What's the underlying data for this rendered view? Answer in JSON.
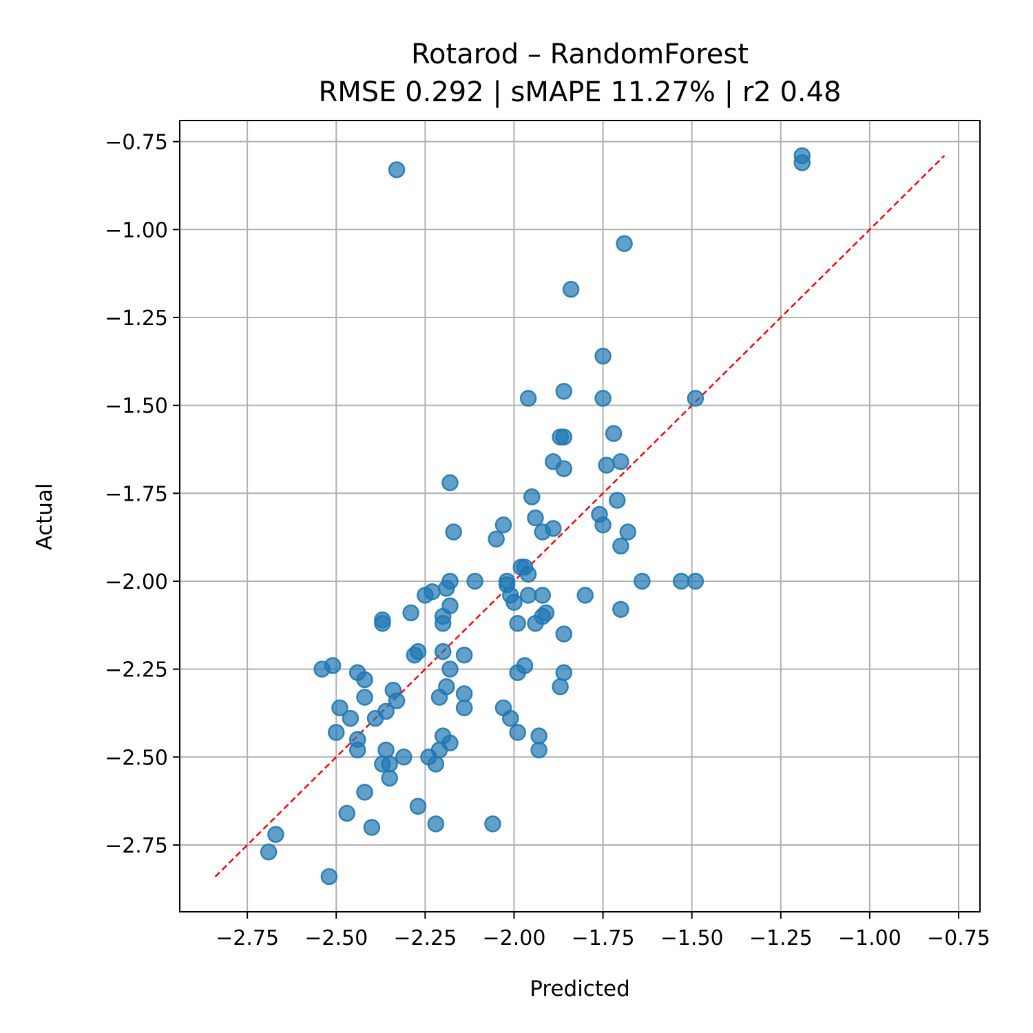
{
  "chart_data": {
    "type": "scatter",
    "title_lines": [
      "Rotarod – RandomForest",
      "RMSE 0.292 | sMAPE 11.27%  | r2 0.48"
    ],
    "xlabel": "Predicted",
    "ylabel": "Actual",
    "xlim": [
      -2.94,
      -0.69
    ],
    "ylim": [
      -2.94,
      -0.69
    ],
    "xticks": [
      -2.75,
      -2.5,
      -2.25,
      -2.0,
      -1.75,
      -1.5,
      -1.25,
      -1.0,
      -0.75
    ],
    "xtick_labels": [
      "−2.75",
      "−2.50",
      "−2.25",
      "−2.00",
      "−1.75",
      "−1.50",
      "−1.25",
      "−1.00",
      "−0.75"
    ],
    "yticks": [
      -0.75,
      -1.0,
      -1.25,
      -1.5,
      -1.75,
      -2.0,
      -2.25,
      -2.5,
      -2.75
    ],
    "ytick_labels": [
      "−0.75",
      "−1.00",
      "−1.25",
      "−1.50",
      "−1.75",
      "−2.00",
      "−2.25",
      "−2.50",
      "−2.75"
    ],
    "grid": true,
    "point_color": "#1f77b4",
    "reference_line": {
      "color": "#ff0000",
      "style": "dashed",
      "from": [
        -2.84,
        -2.84
      ],
      "to": [
        -0.79,
        -0.79
      ]
    },
    "points": [
      [
        -2.33,
        -0.83
      ],
      [
        -1.19,
        -0.79
      ],
      [
        -1.19,
        -0.81
      ],
      [
        -1.69,
        -1.04
      ],
      [
        -1.84,
        -1.17
      ],
      [
        -1.75,
        -1.36
      ],
      [
        -1.75,
        -1.48
      ],
      [
        -1.86,
        -1.46
      ],
      [
        -1.96,
        -1.48
      ],
      [
        -1.49,
        -1.48
      ],
      [
        -1.72,
        -1.58
      ],
      [
        -1.86,
        -1.59
      ],
      [
        -1.87,
        -1.59
      ],
      [
        -1.7,
        -1.66
      ],
      [
        -1.74,
        -1.67
      ],
      [
        -1.89,
        -1.66
      ],
      [
        -1.86,
        -1.68
      ],
      [
        -2.18,
        -1.72
      ],
      [
        -1.95,
        -1.76
      ],
      [
        -1.71,
        -1.77
      ],
      [
        -1.94,
        -1.82
      ],
      [
        -1.76,
        -1.81
      ],
      [
        -1.75,
        -1.84
      ],
      [
        -1.89,
        -1.85
      ],
      [
        -1.92,
        -1.86
      ],
      [
        -2.03,
        -1.84
      ],
      [
        -2.17,
        -1.86
      ],
      [
        -1.68,
        -1.86
      ],
      [
        -2.05,
        -1.88
      ],
      [
        -1.7,
        -1.9
      ],
      [
        -1.98,
        -1.96
      ],
      [
        -1.97,
        -1.96
      ],
      [
        -1.96,
        -1.98
      ],
      [
        -2.11,
        -2.0
      ],
      [
        -2.02,
        -2.0
      ],
      [
        -2.02,
        -2.01
      ],
      [
        -1.64,
        -2.0
      ],
      [
        -1.53,
        -2.0
      ],
      [
        -1.49,
        -2.0
      ],
      [
        -2.18,
        -2.0
      ],
      [
        -2.19,
        -2.02
      ],
      [
        -2.23,
        -2.03
      ],
      [
        -2.25,
        -2.04
      ],
      [
        -2.01,
        -2.04
      ],
      [
        -1.96,
        -2.04
      ],
      [
        -1.92,
        -2.04
      ],
      [
        -2.0,
        -2.06
      ],
      [
        -1.8,
        -2.04
      ],
      [
        -1.7,
        -2.08
      ],
      [
        -2.18,
        -2.07
      ],
      [
        -2.29,
        -2.09
      ],
      [
        -2.2,
        -2.1
      ],
      [
        -1.91,
        -2.09
      ],
      [
        -1.92,
        -2.1
      ],
      [
        -2.37,
        -2.11
      ],
      [
        -2.37,
        -2.12
      ],
      [
        -2.2,
        -2.12
      ],
      [
        -1.99,
        -2.12
      ],
      [
        -1.94,
        -2.12
      ],
      [
        -1.86,
        -2.15
      ],
      [
        -2.27,
        -2.2
      ],
      [
        -2.28,
        -2.21
      ],
      [
        -2.2,
        -2.2
      ],
      [
        -2.14,
        -2.21
      ],
      [
        -2.54,
        -2.25
      ],
      [
        -2.51,
        -2.24
      ],
      [
        -2.44,
        -2.26
      ],
      [
        -2.42,
        -2.28
      ],
      [
        -2.18,
        -2.25
      ],
      [
        -1.99,
        -2.26
      ],
      [
        -1.97,
        -2.24
      ],
      [
        -1.86,
        -2.26
      ],
      [
        -2.19,
        -2.3
      ],
      [
        -1.87,
        -2.3
      ],
      [
        -2.34,
        -2.31
      ],
      [
        -2.42,
        -2.33
      ],
      [
        -2.21,
        -2.33
      ],
      [
        -2.14,
        -2.32
      ],
      [
        -2.33,
        -2.34
      ],
      [
        -2.49,
        -2.36
      ],
      [
        -2.36,
        -2.37
      ],
      [
        -2.14,
        -2.36
      ],
      [
        -2.03,
        -2.36
      ],
      [
        -2.46,
        -2.39
      ],
      [
        -2.39,
        -2.39
      ],
      [
        -2.01,
        -2.39
      ],
      [
        -2.5,
        -2.43
      ],
      [
        -1.99,
        -2.43
      ],
      [
        -2.44,
        -2.45
      ],
      [
        -2.2,
        -2.44
      ],
      [
        -1.93,
        -2.44
      ],
      [
        -2.18,
        -2.46
      ],
      [
        -2.44,
        -2.48
      ],
      [
        -2.36,
        -2.48
      ],
      [
        -2.21,
        -2.48
      ],
      [
        -1.93,
        -2.48
      ],
      [
        -2.31,
        -2.5
      ],
      [
        -2.24,
        -2.5
      ],
      [
        -2.37,
        -2.52
      ],
      [
        -2.35,
        -2.52
      ],
      [
        -2.22,
        -2.52
      ],
      [
        -2.35,
        -2.56
      ],
      [
        -2.42,
        -2.6
      ],
      [
        -2.27,
        -2.64
      ],
      [
        -2.47,
        -2.66
      ],
      [
        -2.22,
        -2.69
      ],
      [
        -2.06,
        -2.69
      ],
      [
        -2.4,
        -2.7
      ],
      [
        -2.67,
        -2.72
      ],
      [
        -2.69,
        -2.77
      ],
      [
        -2.52,
        -2.84
      ]
    ]
  }
}
